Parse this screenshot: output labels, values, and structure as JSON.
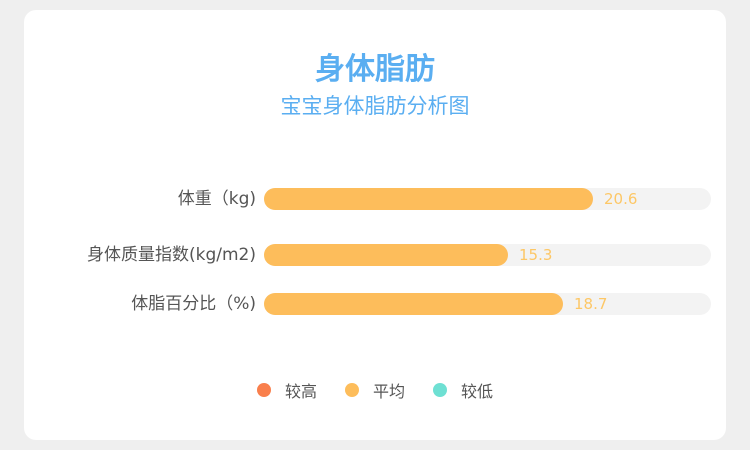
{
  "chart_data": {
    "type": "bar",
    "orientation": "horizontal",
    "title": "身体脂肪",
    "subtitle": "宝宝身体脂肪分析图",
    "categories": [
      "体重（kg)",
      "身体质量指数(kg/m2)",
      "体脂百分比（%)"
    ],
    "values": [
      20.6,
      15.3,
      18.7
    ],
    "value_labels": [
      "20.6",
      "15.3",
      "18.7"
    ],
    "xlim": [
      0,
      28
    ],
    "grid": false,
    "bar_color": "#fdbd5b",
    "track_color": "#f3f3f3",
    "legend_position": "bottom",
    "legend": [
      {
        "label": "较高",
        "color": "#f97f4c"
      },
      {
        "label": "平均",
        "color": "#fdbd5b"
      },
      {
        "label": "较低",
        "color": "#6ee0d3"
      }
    ]
  }
}
